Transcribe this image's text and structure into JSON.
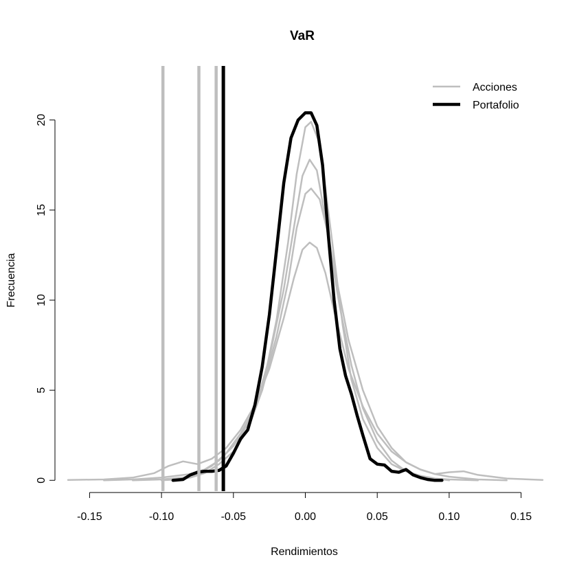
{
  "chart_data": {
    "type": "line",
    "title": "VaR",
    "xlabel": "Rendimientos",
    "ylabel": "Frecuencia",
    "xlim": [
      -0.165,
      0.165
    ],
    "ylim": [
      -0.6,
      23
    ],
    "x_ticks": [
      -0.15,
      -0.1,
      -0.05,
      0.0,
      0.05,
      0.1,
      0.15
    ],
    "x_tick_labels": [
      "-0.15",
      "-0.10",
      "-0.05",
      "0.00",
      "0.05",
      "0.10",
      "0.15"
    ],
    "y_ticks": [
      0,
      5,
      10,
      15,
      20
    ],
    "y_tick_labels": [
      "0",
      "5",
      "10",
      "15",
      "20"
    ],
    "grid": false,
    "legend": {
      "position": "top-right",
      "entries": [
        {
          "label": "Acciones",
          "color": "#bebebe"
        },
        {
          "label": "Portafolio",
          "color": "#000000"
        }
      ]
    },
    "colors": {
      "acciones": "#bebebe",
      "portafolio": "#000000"
    },
    "series": [
      {
        "group": "Acciones",
        "x": [
          -0.165,
          -0.14,
          -0.12,
          -0.105,
          -0.095,
          -0.085,
          -0.075,
          -0.065,
          -0.055,
          -0.045,
          -0.035,
          -0.025,
          -0.015,
          -0.008,
          -0.002,
          0.003,
          0.008,
          0.014,
          0.02,
          0.03,
          0.04,
          0.05,
          0.06,
          0.07,
          0.08,
          0.09,
          0.1,
          0.11,
          0.12,
          0.14,
          0.165
        ],
        "y": [
          0.02,
          0.05,
          0.15,
          0.4,
          0.8,
          1.05,
          0.9,
          1.2,
          1.8,
          2.8,
          4.2,
          6.2,
          9.0,
          11.2,
          12.8,
          13.2,
          12.9,
          11.5,
          9.4,
          6.2,
          4.1,
          2.6,
          1.6,
          1.0,
          0.6,
          0.35,
          0.45,
          0.5,
          0.3,
          0.1,
          0.02
        ]
      },
      {
        "group": "Acciones",
        "x": [
          -0.14,
          -0.12,
          -0.1,
          -0.09,
          -0.08,
          -0.07,
          -0.06,
          -0.05,
          -0.04,
          -0.03,
          -0.02,
          -0.012,
          -0.006,
          0,
          0.004,
          0.01,
          0.016,
          0.022,
          0.03,
          0.04,
          0.05,
          0.06,
          0.07,
          0.08,
          0.09,
          0.1,
          0.12,
          0.14
        ],
        "y": [
          0.0,
          0.05,
          0.15,
          0.25,
          0.35,
          0.6,
          1.1,
          1.9,
          3.1,
          5.0,
          8.0,
          11.0,
          14.0,
          15.9,
          16.2,
          15.6,
          13.6,
          11.0,
          7.8,
          5.0,
          3.0,
          1.8,
          1.0,
          0.6,
          0.35,
          0.2,
          0.05,
          0.0
        ]
      },
      {
        "group": "Acciones",
        "x": [
          -0.12,
          -0.1,
          -0.085,
          -0.075,
          -0.065,
          -0.055,
          -0.045,
          -0.035,
          -0.025,
          -0.015,
          -0.008,
          -0.002,
          0.003,
          0.008,
          0.013,
          0.018,
          0.024,
          0.032,
          0.04,
          0.05,
          0.06,
          0.07,
          0.08,
          0.09,
          0.1,
          0.12
        ],
        "y": [
          0.0,
          0.05,
          0.15,
          0.35,
          0.8,
          1.5,
          2.6,
          4.0,
          6.8,
          10.6,
          14.0,
          16.9,
          17.8,
          17.2,
          15.0,
          12.4,
          9.6,
          6.4,
          4.0,
          2.2,
          1.1,
          0.5,
          0.25,
          0.1,
          0.05,
          0.0
        ]
      },
      {
        "group": "Acciones",
        "x": [
          -0.1,
          -0.09,
          -0.08,
          -0.07,
          -0.06,
          -0.05,
          -0.04,
          -0.03,
          -0.02,
          -0.012,
          -0.006,
          0,
          0.004,
          0.009,
          0.014,
          0.02,
          0.026,
          0.032,
          0.04,
          0.05,
          0.06,
          0.07,
          0.08,
          0.09,
          0.1
        ],
        "y": [
          0.0,
          0.05,
          0.15,
          0.4,
          0.9,
          1.6,
          2.8,
          5.0,
          8.9,
          13.2,
          17.0,
          19.6,
          19.9,
          18.9,
          16.2,
          12.4,
          8.6,
          5.6,
          3.4,
          1.8,
          0.9,
          0.5,
          0.25,
          0.1,
          0.0
        ]
      },
      {
        "group": "Portafolio",
        "x": [
          -0.092,
          -0.085,
          -0.08,
          -0.075,
          -0.07,
          -0.065,
          -0.06,
          -0.055,
          -0.05,
          -0.045,
          -0.04,
          -0.035,
          -0.03,
          -0.025,
          -0.02,
          -0.015,
          -0.01,
          -0.005,
          0,
          0.004,
          0.008,
          0.012,
          0.016,
          0.02,
          0.024,
          0.028,
          0.032,
          0.036,
          0.04,
          0.045,
          0.05,
          0.055,
          0.06,
          0.065,
          0.07,
          0.075,
          0.08,
          0.085,
          0.09,
          0.095
        ],
        "y": [
          0.0,
          0.05,
          0.3,
          0.45,
          0.5,
          0.5,
          0.55,
          0.8,
          1.5,
          2.3,
          2.8,
          4.2,
          6.3,
          9.2,
          12.8,
          16.5,
          19.0,
          20.0,
          20.4,
          20.4,
          19.7,
          17.5,
          13.6,
          10.0,
          7.3,
          5.8,
          4.8,
          3.6,
          2.5,
          1.2,
          0.9,
          0.85,
          0.5,
          0.45,
          0.6,
          0.3,
          0.15,
          0.05,
          0.0,
          0.0
        ]
      }
    ],
    "var_lines": [
      {
        "x": -0.099,
        "color": "#bebebe"
      },
      {
        "x": -0.074,
        "color": "#bebebe"
      },
      {
        "x": -0.062,
        "color": "#bebebe"
      },
      {
        "x": -0.057,
        "color": "#000000"
      }
    ]
  }
}
